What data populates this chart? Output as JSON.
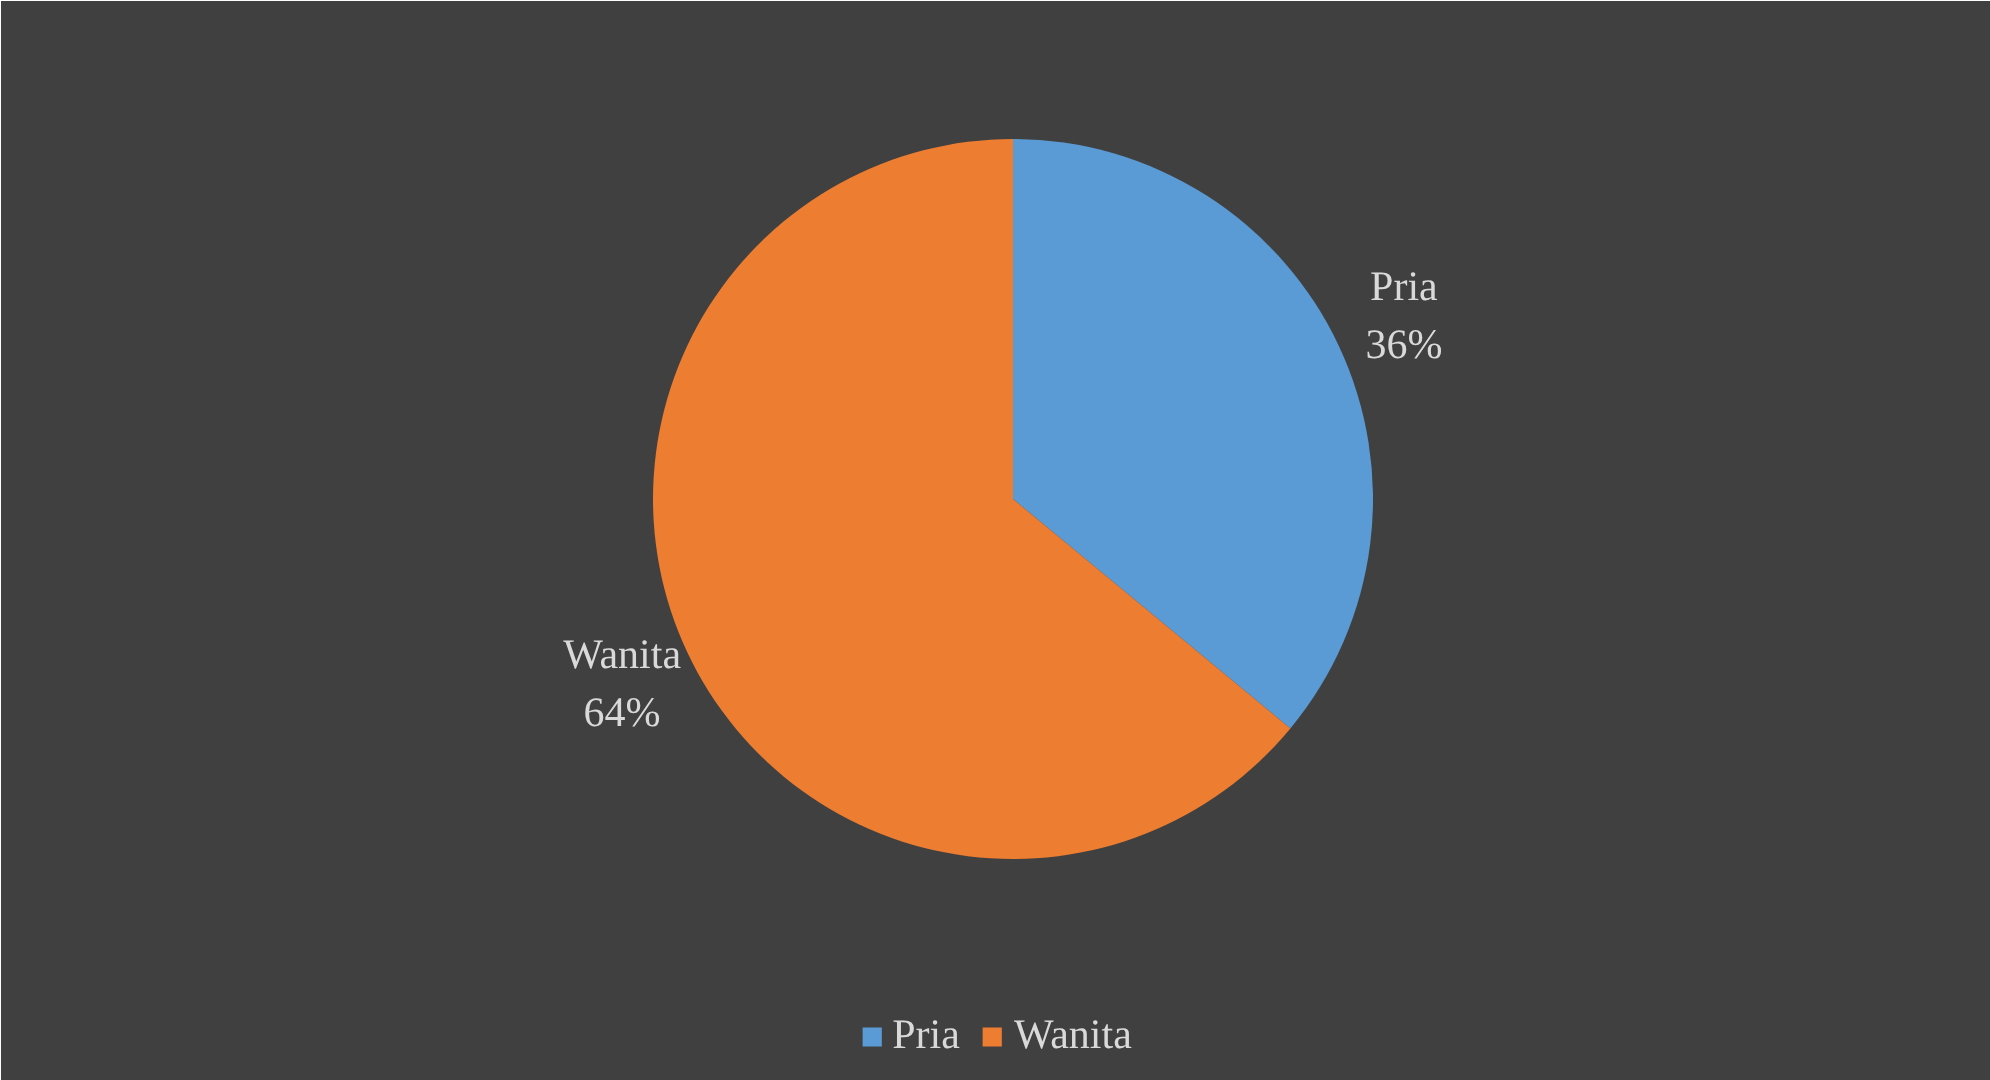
{
  "chart_data": {
    "type": "pie",
    "categories": [
      "Pria",
      "Wanita"
    ],
    "values": [
      36,
      64
    ],
    "colors": [
      "#5b9bd5",
      "#ed7d31"
    ],
    "value_labels": [
      "36%",
      "64%"
    ],
    "legend": "bottom"
  }
}
